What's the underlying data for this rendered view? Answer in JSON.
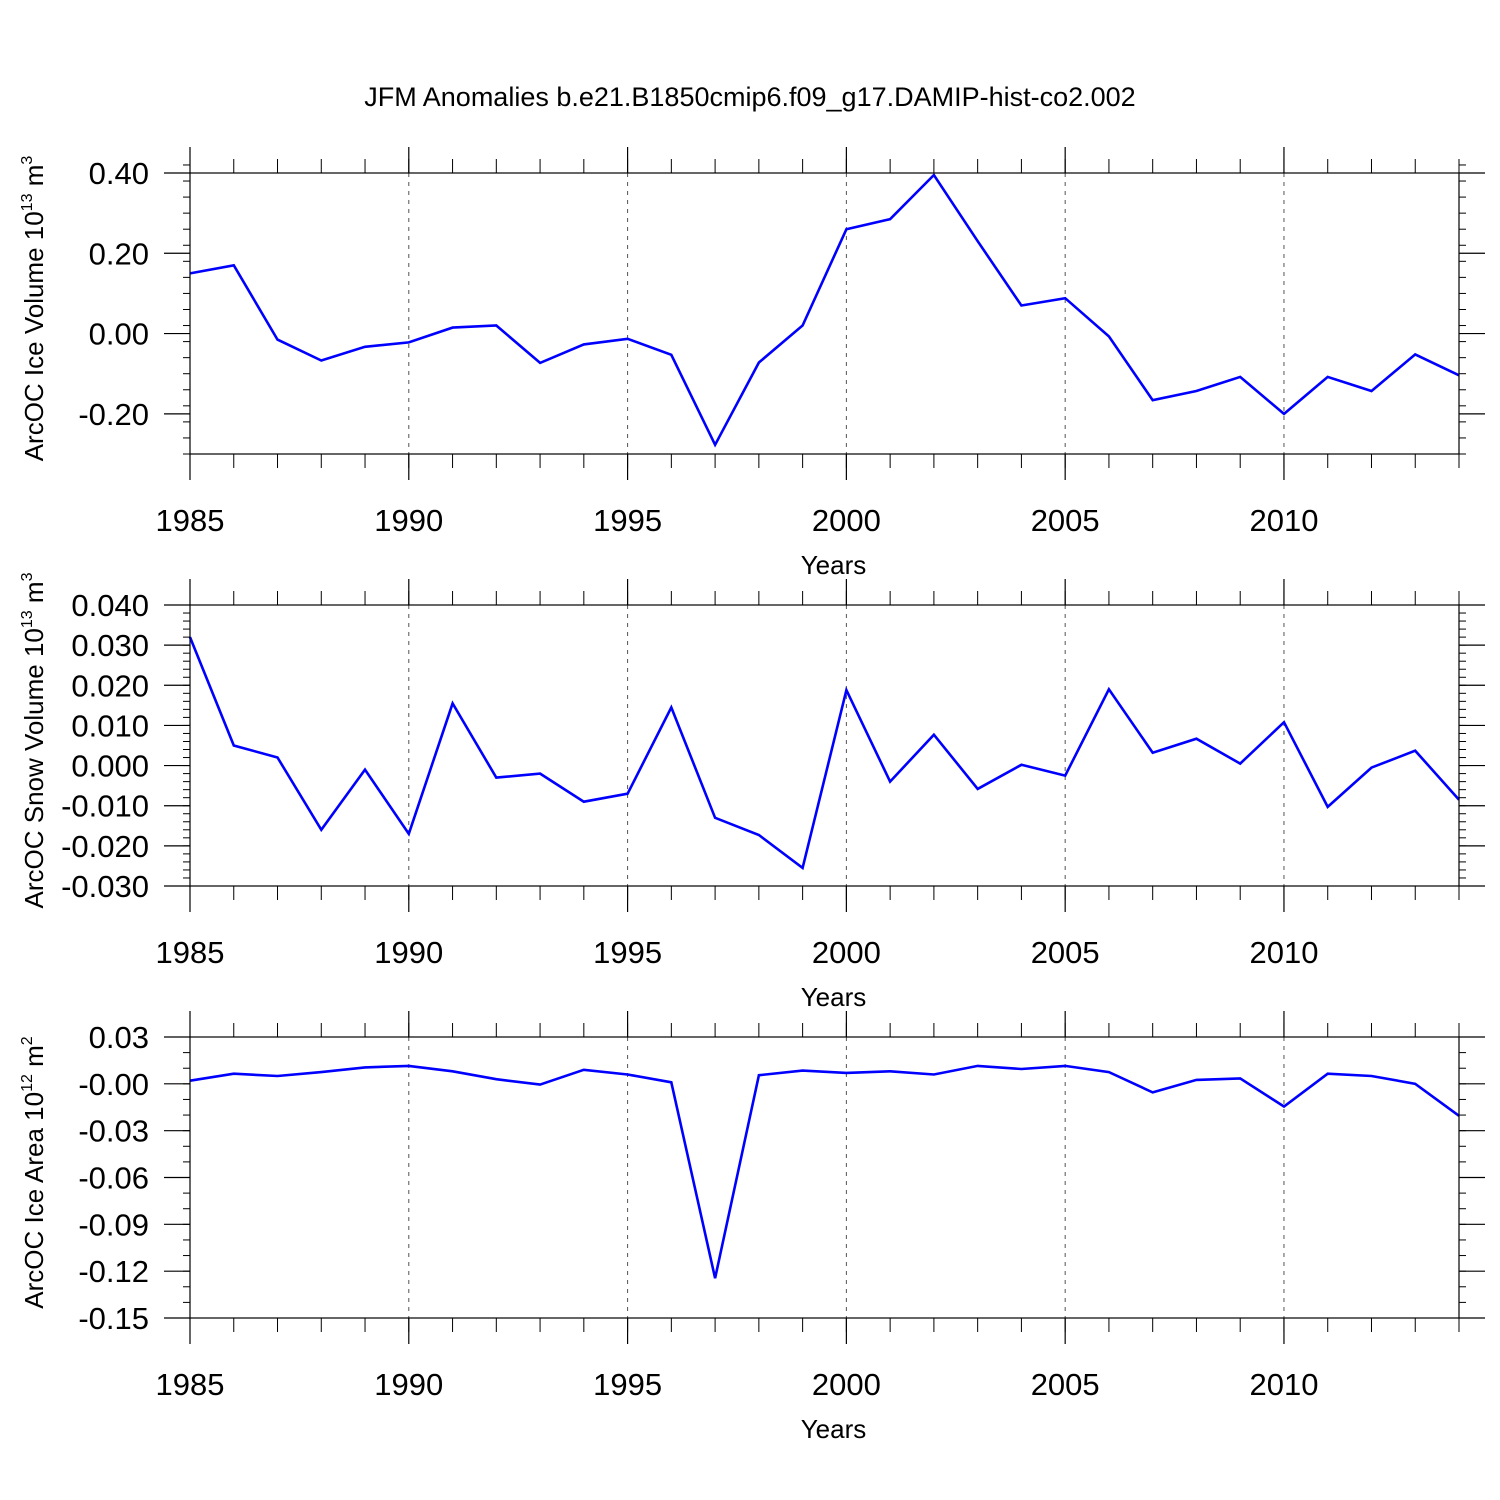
{
  "title": "JFM Anomalies b.e21.B1850cmip6.f09_g17.DAMIP-hist-co2.002",
  "colors": {
    "line": "#0000ff",
    "axis": "#000000",
    "grid": "#555555"
  },
  "chart_data": [
    {
      "type": "line",
      "ylabel_main": "ArcOC Ice Volume 10",
      "ylabel_exp": "13",
      "ylabel_unit": "m",
      "ylabel_unit_exp": "3",
      "xlabel": "Years",
      "xlim": [
        1985,
        2014
      ],
      "ylim": [
        -0.3,
        0.4
      ],
      "y_ticks": [
        0.4,
        0.2,
        0.0,
        -0.2
      ],
      "y_tick_labels": [
        "0.40",
        "0.20",
        "0.00",
        "-0.20"
      ],
      "y_minor_step": 0.04,
      "x_ticks": [
        1985,
        1990,
        1995,
        2000,
        2005,
        2010
      ],
      "x_tick_labels": [
        "1985",
        "1990",
        "1995",
        "2000",
        "2005",
        "2010"
      ],
      "grid_x": [
        1990,
        1995,
        2000,
        2005,
        2010
      ],
      "series": [
        {
          "name": "ArcOC Ice Volume",
          "x": [
            1985,
            1986,
            1987,
            1988,
            1989,
            1990,
            1991,
            1992,
            1993,
            1994,
            1995,
            1996,
            1997,
            1998,
            1999,
            2000,
            2001,
            2002,
            2003,
            2004,
            2005,
            2006,
            2007,
            2008,
            2009,
            2010,
            2011,
            2012,
            2013,
            2014
          ],
          "values": [
            0.15,
            0.17,
            -0.015,
            -0.067,
            -0.033,
            -0.022,
            0.015,
            0.02,
            -0.073,
            -0.027,
            -0.013,
            -0.053,
            -0.277,
            -0.072,
            0.02,
            0.26,
            0.285,
            0.395,
            0.23,
            0.07,
            0.088,
            -0.007,
            -0.166,
            -0.143,
            -0.108,
            -0.2,
            -0.108,
            -0.143,
            -0.052,
            -0.104
          ]
        }
      ]
    },
    {
      "type": "line",
      "ylabel_main": "ArcOC Snow Volume 10",
      "ylabel_exp": "13",
      "ylabel_unit": "m",
      "ylabel_unit_exp": "3",
      "xlabel": "Years",
      "xlim": [
        1985,
        2014
      ],
      "ylim": [
        -0.03,
        0.04
      ],
      "y_ticks": [
        0.04,
        0.03,
        0.02,
        0.01,
        0.0,
        -0.01,
        -0.02,
        -0.03
      ],
      "y_tick_labels": [
        "0.040",
        "0.030",
        "0.020",
        "0.010",
        "0.000",
        "-0.010",
        "-0.020",
        "-0.030"
      ],
      "y_minor_step": 0.002,
      "x_ticks": [
        1985,
        1990,
        1995,
        2000,
        2005,
        2010
      ],
      "x_tick_labels": [
        "1985",
        "1990",
        "1995",
        "2000",
        "2005",
        "2010"
      ],
      "grid_x": [
        1990,
        1995,
        2000,
        2005,
        2010
      ],
      "series": [
        {
          "name": "ArcOC Snow Volume",
          "x": [
            1985,
            1986,
            1987,
            1988,
            1989,
            1990,
            1991,
            1992,
            1993,
            1994,
            1995,
            1996,
            1997,
            1998,
            1999,
            2000,
            2001,
            2002,
            2003,
            2004,
            2005,
            2006,
            2007,
            2008,
            2009,
            2010,
            2011,
            2012,
            2013,
            2014
          ],
          "values": [
            0.032,
            0.005,
            0.002,
            -0.016,
            -0.001,
            -0.017,
            0.0155,
            -0.003,
            -0.002,
            -0.009,
            -0.007,
            0.0145,
            -0.013,
            -0.0173,
            -0.0255,
            0.0188,
            -0.004,
            0.0077,
            -0.0058,
            0.0002,
            -0.0025,
            0.019,
            0.0032,
            0.0067,
            0.0005,
            0.0108,
            -0.0103,
            -0.0005,
            0.0037,
            -0.0085
          ]
        }
      ]
    },
    {
      "type": "line",
      "ylabel_main": "ArcOC Ice Area 10",
      "ylabel_exp": "12",
      "ylabel_unit": "m",
      "ylabel_unit_exp": "2",
      "xlabel": "Years",
      "xlim": [
        1985,
        2014
      ],
      "ylim": [
        -0.15,
        0.03
      ],
      "y_ticks": [
        0.03,
        0.0,
        -0.03,
        -0.06,
        -0.09,
        -0.12,
        -0.15
      ],
      "y_tick_labels": [
        "0.03",
        "-0.00",
        "-0.03",
        "-0.06",
        "-0.09",
        "-0.12",
        "-0.15"
      ],
      "y_minor_step": 0.01,
      "x_ticks": [
        1985,
        1990,
        1995,
        2000,
        2005,
        2010
      ],
      "x_tick_labels": [
        "1985",
        "1990",
        "1995",
        "2000",
        "2005",
        "2010"
      ],
      "grid_x": [
        1990,
        1995,
        2000,
        2005,
        2010
      ],
      "series": [
        {
          "name": "ArcOC Ice Area",
          "x": [
            1985,
            1986,
            1987,
            1988,
            1989,
            1990,
            1991,
            1992,
            1993,
            1994,
            1995,
            1996,
            1997,
            1998,
            1999,
            2000,
            2001,
            2002,
            2003,
            2004,
            2005,
            2006,
            2007,
            2008,
            2009,
            2010,
            2011,
            2012,
            2013,
            2014
          ],
          "values": [
            0.002,
            0.0065,
            0.005,
            0.0075,
            0.0105,
            0.0115,
            0.008,
            0.003,
            -0.0005,
            0.009,
            0.006,
            0.001,
            -0.1245,
            0.0055,
            0.0085,
            0.007,
            0.008,
            0.006,
            0.0115,
            0.0095,
            0.0115,
            0.0075,
            -0.0055,
            0.0025,
            0.0035,
            -0.0145,
            0.0065,
            0.005,
            0.0,
            -0.0205
          ]
        }
      ]
    }
  ]
}
